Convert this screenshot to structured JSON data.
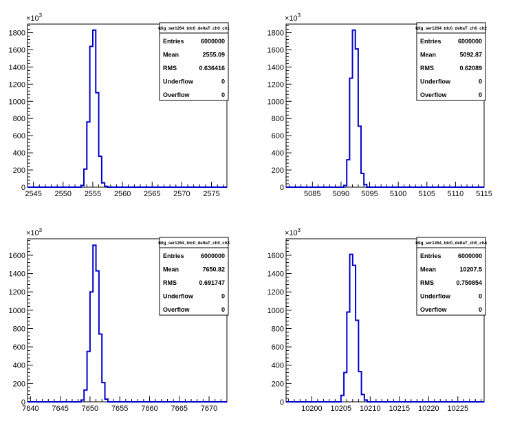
{
  "chart_data": [
    {
      "type": "histogram",
      "title": "tdig_ser1264_tdc0_deltaT_ch0_ch1",
      "multiplier": "×10",
      "multiplier_exp": "3",
      "xlim": [
        2544,
        2577.6
      ],
      "ylim": [
        0,
        1900
      ],
      "x_ticks": [
        "2545",
        "2550",
        "2555",
        "2560",
        "2565",
        "2570",
        "2575"
      ],
      "y_ticks": [
        "0",
        "200",
        "400",
        "600",
        "800",
        "1000",
        "1200",
        "1400",
        "1600",
        "1800"
      ],
      "bin_width": 0.5,
      "bins": [
        {
          "x": 2553.0,
          "value": 20
        },
        {
          "x": 2553.5,
          "value": 210
        },
        {
          "x": 2554.0,
          "value": 760
        },
        {
          "x": 2554.5,
          "value": 1640
        },
        {
          "x": 2555.0,
          "value": 1830
        },
        {
          "x": 2555.5,
          "value": 1100
        },
        {
          "x": 2556.0,
          "value": 360
        },
        {
          "x": 2556.5,
          "value": 50
        },
        {
          "x": 2557.0,
          "value": 10
        }
      ],
      "stats": [
        {
          "label": "Entries",
          "value": "6000000"
        },
        {
          "label": "Mean",
          "value": "2555.09"
        },
        {
          "label": "RMS",
          "value": "0.636416"
        },
        {
          "label": "Underflow",
          "value": "0"
        },
        {
          "label": "Overflow",
          "value": "0"
        }
      ],
      "line_color": "#0000cc"
    },
    {
      "type": "histogram",
      "title": "tdig_ser1264_tdc0_deltaT_ch0_ch2",
      "multiplier": "×10",
      "multiplier_exp": "3",
      "xlim": [
        5080.4,
        5115
      ],
      "ylim": [
        0,
        1900
      ],
      "x_ticks": [
        "5085",
        "5090",
        "5095",
        "5100",
        "5105",
        "5110",
        "5115"
      ],
      "y_ticks": [
        "0",
        "200",
        "400",
        "600",
        "800",
        "1000",
        "1200",
        "1400",
        "1600",
        "1800"
      ],
      "bin_width": 0.5,
      "bins": [
        {
          "x": 5090.5,
          "value": 20
        },
        {
          "x": 5091.0,
          "value": 320
        },
        {
          "x": 5091.5,
          "value": 1270
        },
        {
          "x": 5092.0,
          "value": 1830
        },
        {
          "x": 5092.5,
          "value": 1610
        },
        {
          "x": 5093.0,
          "value": 710
        },
        {
          "x": 5093.5,
          "value": 160
        },
        {
          "x": 5094.0,
          "value": 30
        }
      ],
      "stats": [
        {
          "label": "Entries",
          "value": "6000000"
        },
        {
          "label": "Mean",
          "value": "5092.87"
        },
        {
          "label": "RMS",
          "value": "0.62089"
        },
        {
          "label": "Underflow",
          "value": "0"
        },
        {
          "label": "Overflow",
          "value": "0"
        }
      ],
      "line_color": "#0000cc"
    },
    {
      "type": "histogram",
      "title": "tdig_ser1264_tdc0_deltaT_ch0_ch3",
      "multiplier": "×10",
      "multiplier_exp": "3",
      "xlim": [
        7639.5,
        7673
      ],
      "ylim": [
        0,
        1780
      ],
      "x_ticks": [
        "7640",
        "7645",
        "7650",
        "7655",
        "7660",
        "7665",
        "7670"
      ],
      "y_ticks": [
        "0",
        "200",
        "400",
        "600",
        "800",
        "1000",
        "1200",
        "1400",
        "1600"
      ],
      "bin_width": 0.5,
      "bins": [
        {
          "x": 7648.5,
          "value": 20
        },
        {
          "x": 7649.0,
          "value": 130
        },
        {
          "x": 7649.5,
          "value": 550
        },
        {
          "x": 7650.0,
          "value": 1200
        },
        {
          "x": 7650.5,
          "value": 1710
        },
        {
          "x": 7651.0,
          "value": 1430
        },
        {
          "x": 7651.5,
          "value": 740
        },
        {
          "x": 7652.0,
          "value": 210
        },
        {
          "x": 7652.5,
          "value": 30
        }
      ],
      "stats": [
        {
          "label": "Entries",
          "value": "6000000"
        },
        {
          "label": "Mean",
          "value": "7650.82"
        },
        {
          "label": "RMS",
          "value": "0.691747"
        },
        {
          "label": "Underflow",
          "value": "0"
        },
        {
          "label": "Overflow",
          "value": "0"
        }
      ],
      "line_color": "#0000cc"
    },
    {
      "type": "histogram",
      "title": "tdig_ser1264_tdc0_deltaT_ch0_ch4",
      "multiplier": "×10",
      "multiplier_exp": "3",
      "xlim": [
        10195.6,
        10229.5
      ],
      "ylim": [
        0,
        1780
      ],
      "x_ticks": [
        "10200",
        "10205",
        "10210",
        "10215",
        "10220",
        "10225"
      ],
      "y_ticks": [
        "0",
        "200",
        "400",
        "600",
        "800",
        "1000",
        "1200",
        "1400",
        "1600"
      ],
      "bin_width": 0.5,
      "bins": [
        {
          "x": 10205.0,
          "value": 70
        },
        {
          "x": 10205.5,
          "value": 320
        },
        {
          "x": 10206.0,
          "value": 980
        },
        {
          "x": 10206.5,
          "value": 1610
        },
        {
          "x": 10207.0,
          "value": 1490
        },
        {
          "x": 10207.5,
          "value": 890
        },
        {
          "x": 10208.0,
          "value": 330
        },
        {
          "x": 10208.5,
          "value": 80
        },
        {
          "x": 10209.0,
          "value": 20
        }
      ],
      "stats": [
        {
          "label": "Entries",
          "value": "6000000"
        },
        {
          "label": "Mean",
          "value": "10207.5"
        },
        {
          "label": "RMS",
          "value": "0.750854"
        },
        {
          "label": "Underflow",
          "value": "0"
        },
        {
          "label": "Overflow",
          "value": "0"
        }
      ],
      "line_color": "#0000cc"
    }
  ]
}
